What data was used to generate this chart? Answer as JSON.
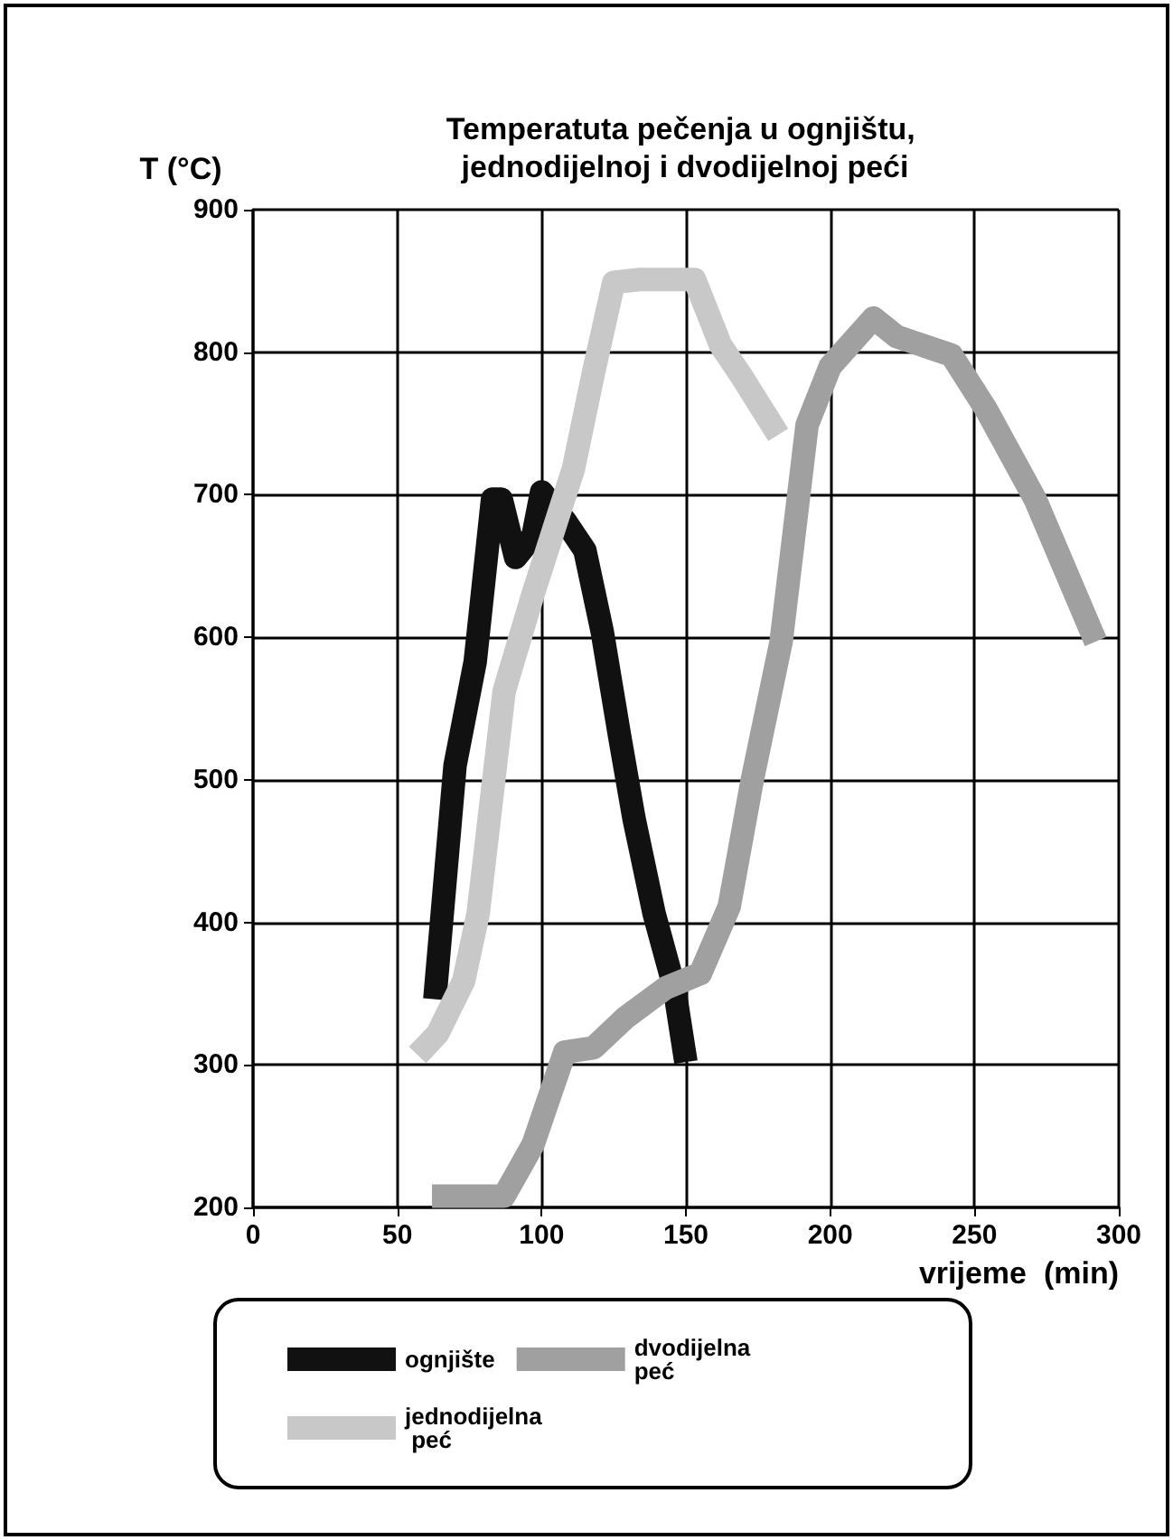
{
  "chart_data": {
    "type": "line",
    "title": "Temperatuta pečenja u ognjištu, jednodijelnoj i dvodijelnoj peći",
    "xlabel": "vrijeme  (min)",
    "ylabel": "T (°C)",
    "xlim": [
      0,
      300
    ],
    "xticks": [
      0,
      50,
      100,
      150,
      200,
      250,
      300
    ],
    "ylim": [
      200,
      900
    ],
    "yticks": [
      200,
      300,
      400,
      500,
      600,
      700,
      800,
      900
    ],
    "grid": true,
    "legend": "bottom",
    "marker": "none",
    "line_style": "solid",
    "series": [
      {
        "name": "ognjište",
        "color": "#111111",
        "x": [
          63,
          70,
          77,
          83,
          86,
          91,
          97,
          100,
          108,
          115,
          121,
          127,
          132,
          139,
          146,
          150
        ],
        "values": [
          346,
          510,
          583,
          697,
          697,
          656,
          671,
          702,
          682,
          661,
          604,
          531,
          473,
          406,
          354,
          302
        ]
      },
      {
        "name": "dvodijelna peć",
        "color": "#a0a0a0",
        "x": [
          62,
          87,
          97,
          108,
          118,
          129,
          143,
          155,
          165,
          173,
          183,
          192,
          200,
          215,
          223,
          242,
          254,
          271,
          292
        ],
        "values": [
          208,
          208,
          244,
          309,
          312,
          333,
          354,
          364,
          411,
          500,
          597,
          749,
          790,
          824,
          811,
          798,
          760,
          697,
          597
        ]
      },
      {
        "name": "jednodijelna peć",
        "color": "#c8c8c8",
        "x": [
          57,
          64,
          73,
          78,
          87,
          97,
          106,
          111,
          118,
          125,
          134,
          153,
          162,
          169,
          182
        ],
        "values": [
          307,
          322,
          359,
          406,
          562,
          630,
          687,
          718,
          786,
          849,
          851,
          851,
          805,
          784,
          742
        ]
      }
    ]
  }
}
